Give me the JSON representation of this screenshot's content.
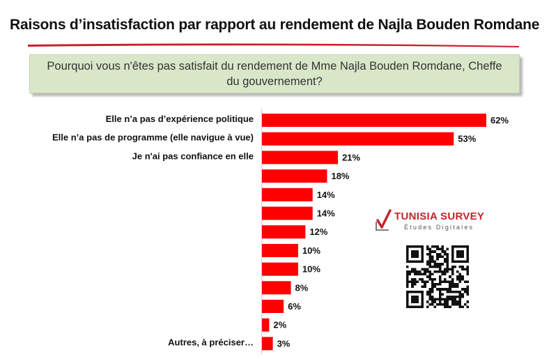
{
  "header": {
    "title": "Raisons d’insatisfaction par rapport au rendement de Najla Bouden Romdane",
    "question": "Pourquoi vous n'êtes pas satisfait du rendement de Mme Najla Bouden Romdane, Cheffe du gouvernement?"
  },
  "logo": {
    "brand": "TUNISIA SURVEY",
    "tagline": "Études Digitales"
  },
  "chart_data": {
    "type": "bar",
    "orientation": "horizontal",
    "title": "",
    "xlabel": "",
    "ylabel": "",
    "xlim": [
      0,
      62
    ],
    "grid": false,
    "legend": "none",
    "bar_color": "#ff0000",
    "categories": [
      "Elle n’a pas d’expérience politique",
      "Elle n’a pas de programme (elle navigue à vue)",
      "Je n'ai pas confiance en elle",
      "",
      "",
      "",
      "",
      "",
      "",
      "",
      "",
      "",
      "Autres, à préciser…"
    ],
    "values": [
      62,
      53,
      21,
      18,
      14,
      14,
      12,
      10,
      10,
      8,
      6,
      2,
      3
    ],
    "value_labels": [
      "62%",
      "53%",
      "21%",
      "18%",
      "14%",
      "14%",
      "12%",
      "10%",
      "10%",
      "8%",
      "6%",
      "2%",
      "3%"
    ]
  }
}
